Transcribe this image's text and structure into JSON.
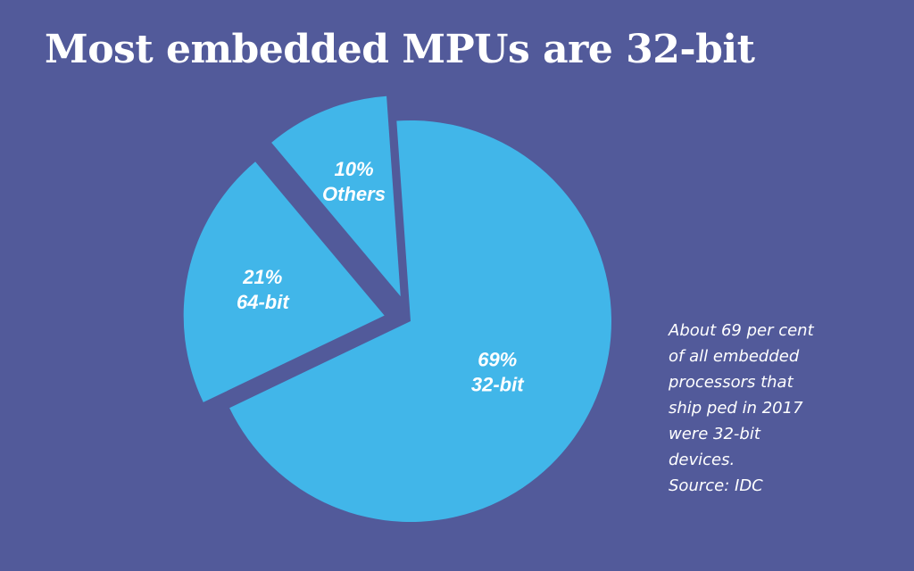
{
  "title": "Most embedded MPUs are 32-bit",
  "colors": {
    "background": "#525a9a",
    "slice": "#41b6e9",
    "text": "#ffffff"
  },
  "note": {
    "lines": [
      "About 69 per cent",
      "of all embedded",
      "processors that",
      "ship ped in 2017",
      "were 32-bit",
      "devices."
    ],
    "source": "Source: IDC"
  },
  "chart_data": {
    "type": "pie",
    "title": "Most embedded MPUs are 32-bit",
    "slices": [
      {
        "label": "32-bit",
        "value": 69,
        "value_label": "69%"
      },
      {
        "label": "64-bit",
        "value": 21,
        "value_label": "21%"
      },
      {
        "label": "Others",
        "value": 10,
        "value_label": "10%"
      }
    ],
    "exploded": [
      "64-bit",
      "Others"
    ],
    "legend": "none"
  }
}
